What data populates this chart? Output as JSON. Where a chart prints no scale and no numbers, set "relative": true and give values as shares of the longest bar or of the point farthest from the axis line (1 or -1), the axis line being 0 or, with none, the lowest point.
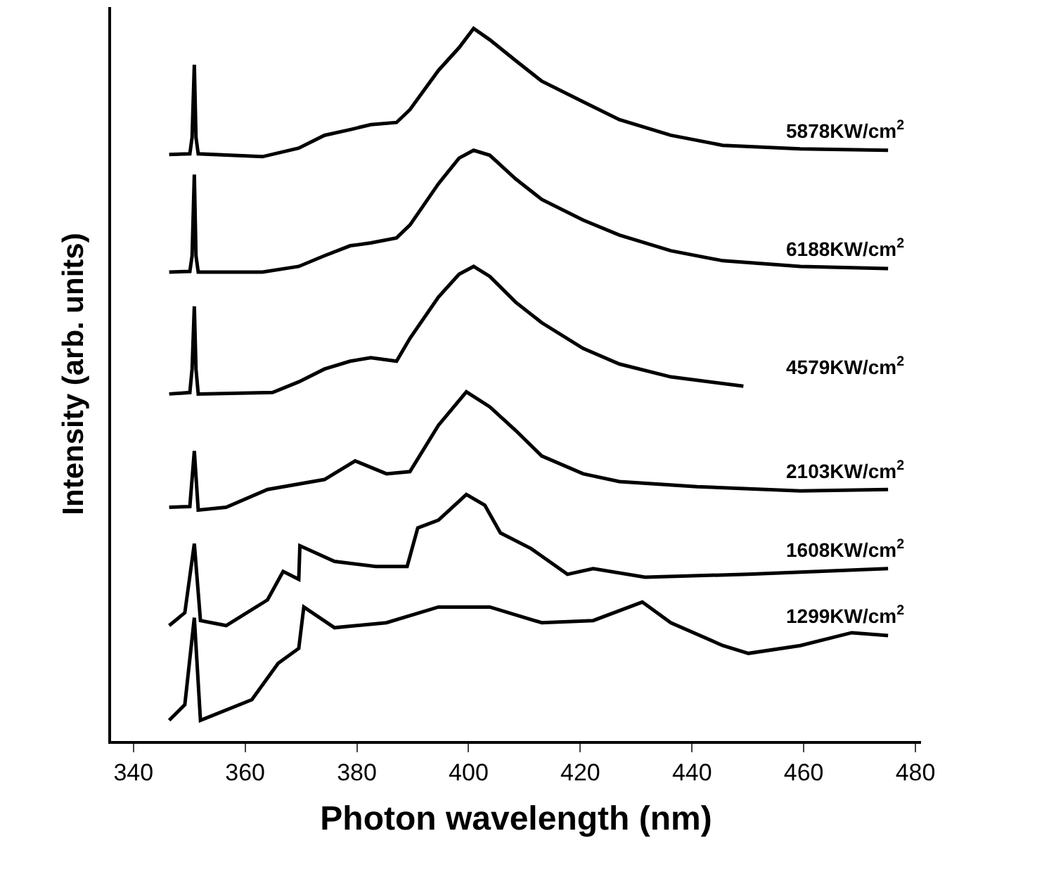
{
  "chart_data": {
    "type": "line",
    "relative": true,
    "xlabel": "Photon wavelength (nm)",
    "ylabel": "Intensity (arb. units)",
    "xlim": [
      336,
      481
    ],
    "xticks": [
      340,
      360,
      380,
      400,
      420,
      440,
      460,
      480
    ],
    "marker": "none",
    "line_style": "solid",
    "series": [
      {
        "name": "5878KW/cm$^{2}$",
        "color": "#000000",
        "x": [
          346.4,
          350.1,
          350.5,
          350.9,
          351.2,
          351.6,
          363.1,
          369.6,
          374.2,
          378.8,
          382.5,
          387.1,
          389.5,
          394.6,
          398.3,
          400.9,
          403.8,
          408.4,
          413.1,
          420.5,
          427.0,
          436.2,
          445.5,
          459.4,
          475.1
        ],
        "values": [
          0.823,
          0.824,
          0.847,
          0.949,
          0.847,
          0.824,
          0.82,
          0.832,
          0.85,
          0.858,
          0.865,
          0.868,
          0.886,
          0.941,
          0.973,
          1.0,
          0.984,
          0.955,
          0.926,
          0.897,
          0.872,
          0.85,
          0.836,
          0.831,
          0.829
        ]
      },
      {
        "name": "6188KW/cm$^{2}$",
        "color": "#000000",
        "x": [
          346.4,
          350.1,
          350.5,
          350.9,
          351.2,
          351.6,
          363.1,
          369.6,
          374.2,
          378.8,
          382.5,
          387.1,
          389.5,
          394.6,
          398.3,
          400.9,
          403.8,
          408.4,
          413.1,
          420.5,
          427.0,
          436.2,
          445.5,
          459.4,
          475.1
        ],
        "values": [
          0.658,
          0.659,
          0.681,
          0.795,
          0.681,
          0.658,
          0.658,
          0.666,
          0.681,
          0.695,
          0.699,
          0.706,
          0.724,
          0.782,
          0.818,
          0.829,
          0.822,
          0.789,
          0.76,
          0.731,
          0.71,
          0.688,
          0.674,
          0.666,
          0.663
        ]
      },
      {
        "name": "4579KW/cm$^{2}$",
        "color": "#000000",
        "x": [
          346.4,
          350.1,
          350.5,
          350.9,
          351.2,
          351.6,
          364.9,
          369.6,
          374.2,
          378.8,
          382.5,
          387.1,
          389.5,
          394.6,
          398.3,
          400.9,
          403.8,
          408.4,
          413.1,
          420.5,
          427.0,
          436.2,
          449.2
        ],
        "values": [
          0.487,
          0.489,
          0.522,
          0.61,
          0.522,
          0.487,
          0.489,
          0.504,
          0.522,
          0.533,
          0.538,
          0.533,
          0.565,
          0.623,
          0.655,
          0.666,
          0.652,
          0.616,
          0.587,
          0.551,
          0.529,
          0.511,
          0.498
        ]
      },
      {
        "name": "2103KW/cm$^{2}$",
        "color": "#000000",
        "x": [
          346.4,
          350.1,
          350.9,
          351.6,
          356.6,
          364.0,
          374.2,
          379.7,
          385.3,
          389.5,
          394.6,
          399.6,
          403.8,
          408.4,
          413.1,
          420.5,
          427.0,
          440.9,
          459.4,
          475.1
        ],
        "values": [
          0.328,
          0.329,
          0.407,
          0.324,
          0.328,
          0.353,
          0.367,
          0.393,
          0.375,
          0.378,
          0.443,
          0.49,
          0.469,
          0.436,
          0.4,
          0.375,
          0.364,
          0.357,
          0.351,
          0.353
        ]
      },
      {
        "name": "1608KW/cm$^{2}$",
        "color": "#000000",
        "x": [
          346.4,
          349.2,
          350.9,
          352.0,
          356.6,
          364.0,
          366.8,
          369.6,
          369.8,
          376.0,
          383.4,
          389.0,
          390.9,
          394.6,
          399.6,
          402.9,
          405.7,
          411.2,
          417.7,
          422.3,
          431.6,
          450.1,
          475.1
        ],
        "values": [
          0.162,
          0.18,
          0.277,
          0.169,
          0.162,
          0.198,
          0.238,
          0.227,
          0.274,
          0.252,
          0.245,
          0.245,
          0.299,
          0.31,
          0.346,
          0.331,
          0.292,
          0.27,
          0.234,
          0.242,
          0.23,
          0.234,
          0.242
        ]
      },
      {
        "name": "1299KW/cm$^{2}$",
        "color": "#000000",
        "x": [
          346.4,
          349.2,
          350.9,
          352.0,
          361.2,
          365.9,
          369.6,
          370.5,
          376.0,
          385.3,
          394.6,
          403.8,
          413.1,
          422.3,
          431.1,
          436.2,
          445.5,
          450.1,
          459.4,
          468.6,
          475.1
        ],
        "values": [
          0.029,
          0.051,
          0.173,
          0.029,
          0.058,
          0.109,
          0.13,
          0.188,
          0.159,
          0.166,
          0.188,
          0.188,
          0.166,
          0.169,
          0.195,
          0.166,
          0.134,
          0.123,
          0.134,
          0.152,
          0.148
        ]
      }
    ]
  }
}
